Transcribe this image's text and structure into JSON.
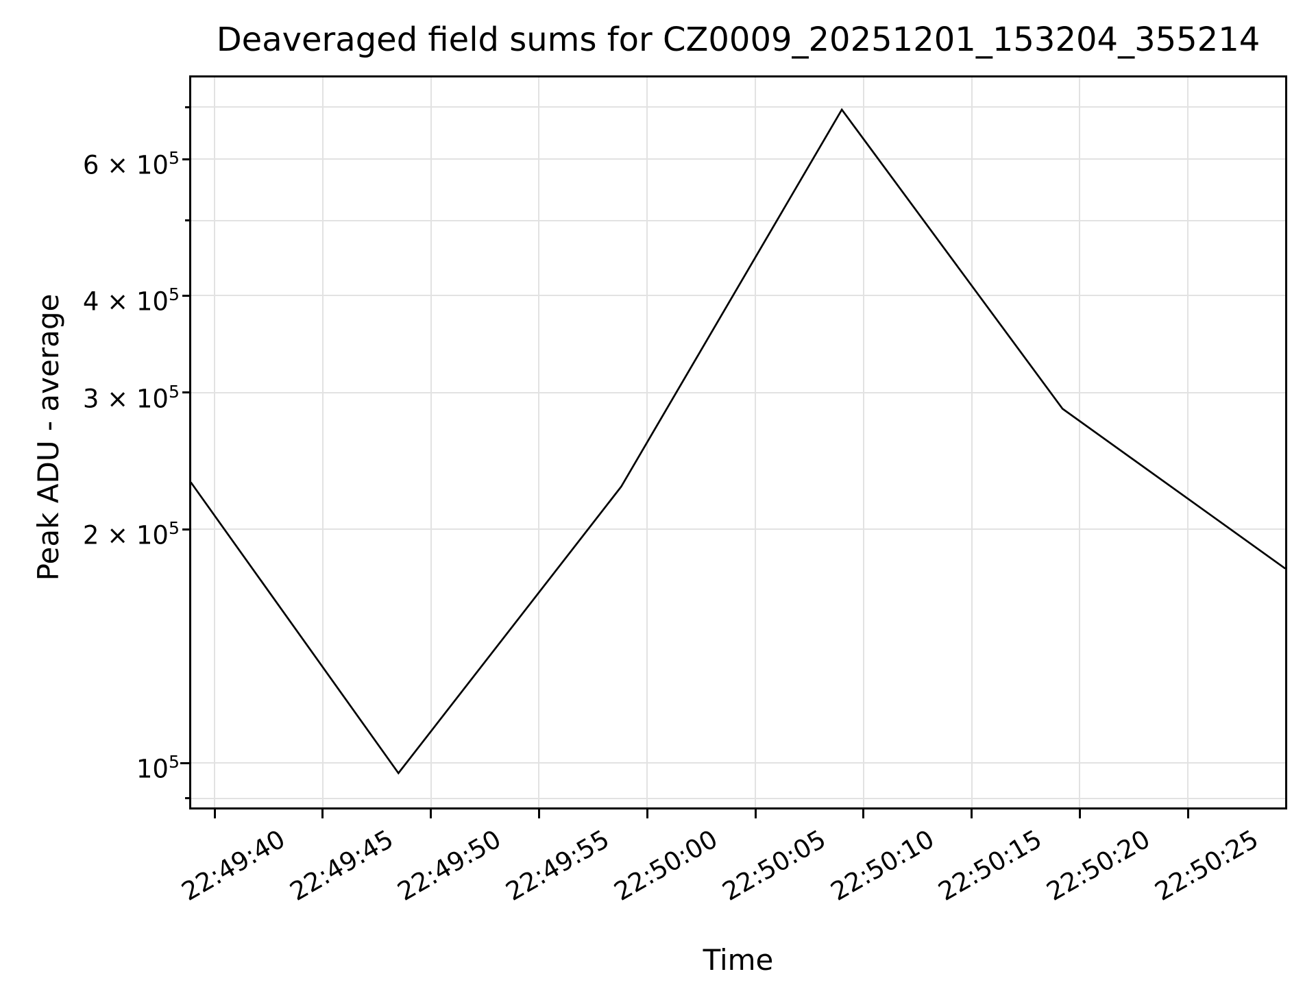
{
  "figure": {
    "title": "Deaveraged field sums for CZ0009_20251201_153204_355214",
    "xlabel": "Time",
    "ylabel": "Peak ADU - average"
  },
  "chart_data": {
    "type": "line",
    "title": "Deaveraged field sums for CZ0009_20251201_153204_355214",
    "xlabel": "Time",
    "ylabel": "Peak ADU - average",
    "y_scale": "log",
    "grid": true,
    "legend": "none",
    "x_ticks": [
      {
        "label": "22:49:40",
        "t_sec": 0
      },
      {
        "label": "22:49:45",
        "t_sec": 5
      },
      {
        "label": "22:49:50",
        "t_sec": 10
      },
      {
        "label": "22:49:55",
        "t_sec": 15
      },
      {
        "label": "22:50:00",
        "t_sec": 20
      },
      {
        "label": "22:50:05",
        "t_sec": 25
      },
      {
        "label": "22:50:10",
        "t_sec": 30
      },
      {
        "label": "22:50:15",
        "t_sec": 35
      },
      {
        "label": "22:50:20",
        "t_sec": 40
      },
      {
        "label": "22:50:25",
        "t_sec": 45
      }
    ],
    "y_ticks_labeled": [
      {
        "value": 100000,
        "coeff": "",
        "exp": "5",
        "major": true
      },
      {
        "value": 200000,
        "coeff": "2 × ",
        "exp": "5",
        "major": false
      },
      {
        "value": 300000,
        "coeff": "3 × ",
        "exp": "5",
        "major": false
      },
      {
        "value": 400000,
        "coeff": "4 × ",
        "exp": "5",
        "major": false
      },
      {
        "value": 600000,
        "coeff": "6 × ",
        "exp": "5",
        "major": false
      }
    ],
    "y_ticks_minor": [
      90000,
      500000,
      700000
    ],
    "x_axis_range_sec": [
      -1.1,
      49.5
    ],
    "y_axis_range": [
      87600,
      764000
    ],
    "series": [
      {
        "name": "Deaveraged field sum",
        "color": "#000000",
        "points": [
          {
            "time": "22:49:38.9",
            "t_sec": -1.1,
            "value": 230000
          },
          {
            "time": "22:49:48.5",
            "t_sec": 8.5,
            "value": 97000
          },
          {
            "time": "22:49:58.8",
            "t_sec": 18.8,
            "value": 227000
          },
          {
            "time": "22:50:09.0",
            "t_sec": 29.0,
            "value": 695000
          },
          {
            "time": "22:50:19.2",
            "t_sec": 39.2,
            "value": 286000
          },
          {
            "time": "22:50:29.5",
            "t_sec": 49.5,
            "value": 178000
          }
        ]
      }
    ]
  },
  "colors": {
    "background": "#ffffff",
    "text": "#000000",
    "grid": "#e2e2e2",
    "spine": "#000000",
    "line": "#000000"
  }
}
